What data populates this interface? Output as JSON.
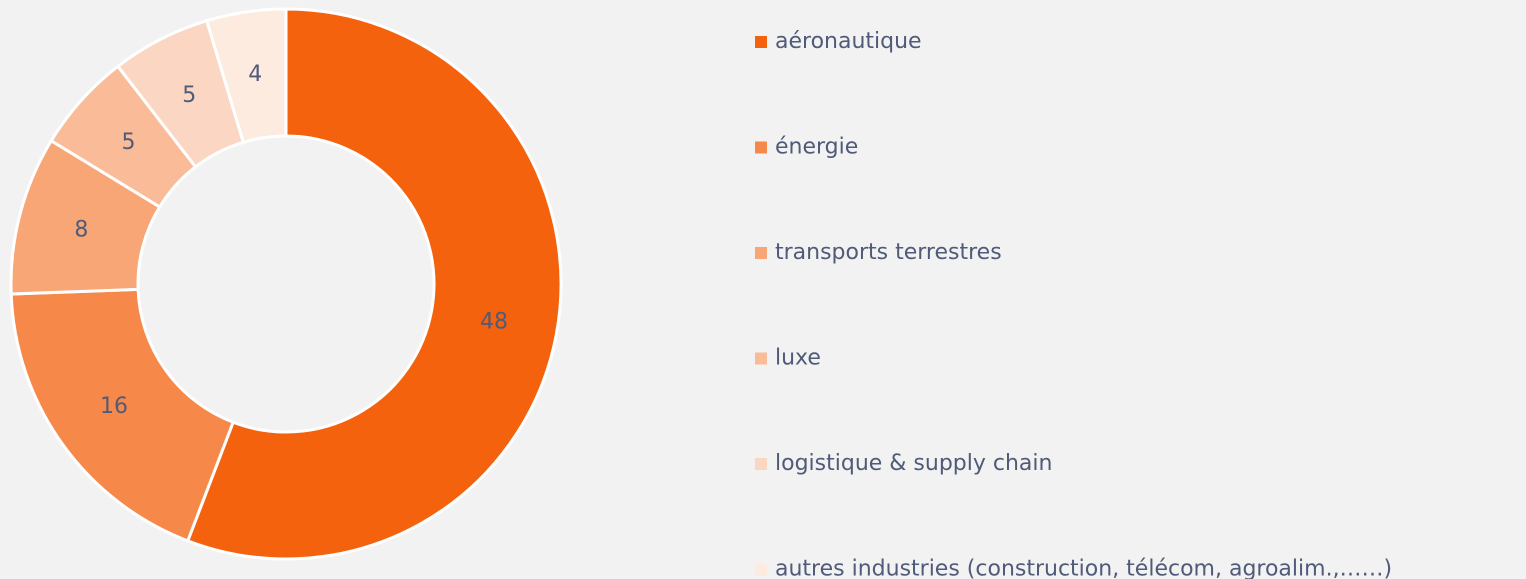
{
  "chart_data": {
    "type": "donut",
    "categories": [
      "aéronautique",
      "énergie",
      "transports terrestres",
      "luxe",
      "logistique & supply chain",
      "autres industries (construction, télécom, agroalim.,……)"
    ],
    "values": [
      48,
      16,
      8,
      5,
      5,
      4
    ],
    "colors": [
      "#f4620d",
      "#f6894a",
      "#f8a676",
      "#f9bb98",
      "#fbd6c3",
      "#fdebe0"
    ],
    "legend": "right"
  }
}
